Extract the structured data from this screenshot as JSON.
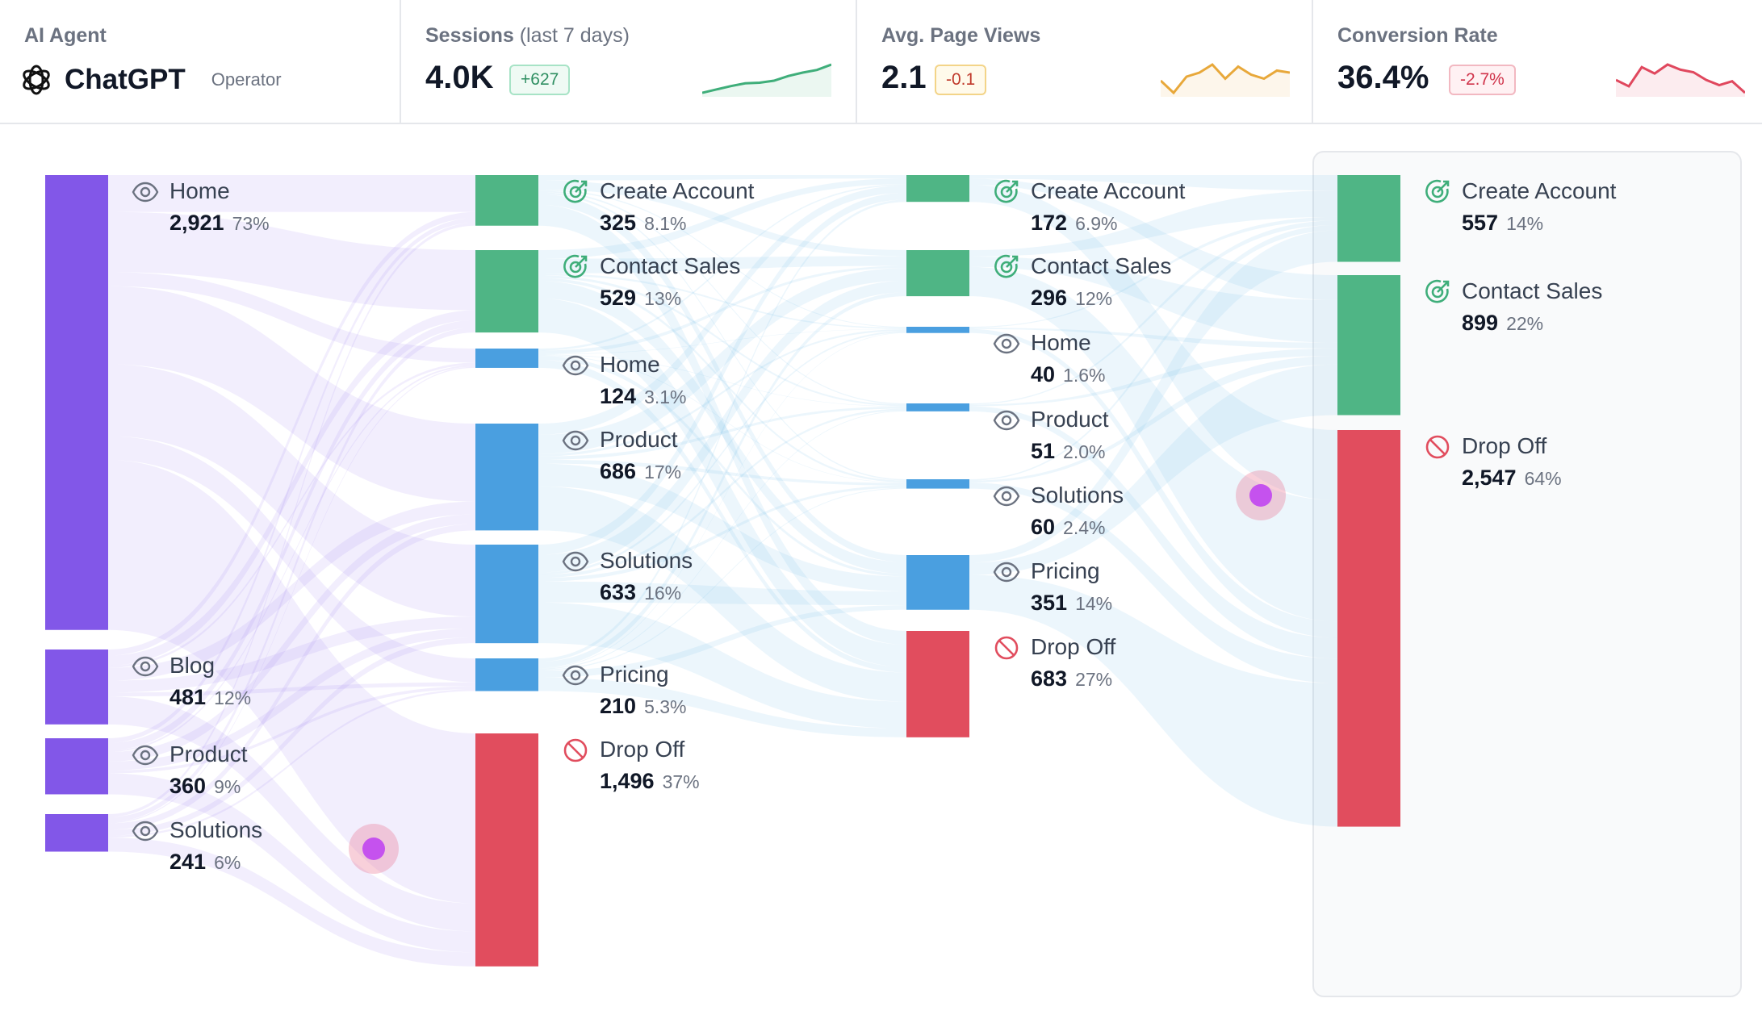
{
  "header": {
    "agent": {
      "label": "AI Agent",
      "name": "ChatGPT",
      "tag": "Operator",
      "icon": "openai-logo-icon"
    },
    "cards": [
      {
        "label": "Sessions",
        "sublabel": "(last 7 days)",
        "value": "4.0K",
        "delta": "+627",
        "color": "#3fae7a",
        "spark": [
          2,
          2.5,
          3,
          3.4,
          3.5,
          3.8,
          4.5,
          5,
          5.4,
          6.2
        ]
      },
      {
        "label": "Avg. Page Views",
        "sublabel": "",
        "value": "2.1",
        "delta": "-0.1",
        "color": "#e8a83a",
        "spark": [
          3,
          2.4,
          3.2,
          3.4,
          3.8,
          3.1,
          3.7,
          3.3,
          3.1,
          3.5,
          3.4
        ]
      },
      {
        "label": "Conversion Rate",
        "sublabel": "",
        "value": "36.4%",
        "delta": "-2.7%",
        "color": "#e0485e",
        "spark": [
          3,
          2.5,
          4,
          3.5,
          4.2,
          3.8,
          3.6,
          3,
          2.6,
          2.9,
          2
        ]
      }
    ]
  },
  "chart_data": {
    "type": "sankey",
    "colors": {
      "entry": "#8257e8",
      "goal": "#4fb585",
      "page": "#4a9fe0",
      "dropoff": "#e14d5e"
    },
    "columns": [
      [
        {
          "name": "Home",
          "value": "2,921",
          "pct": "73%",
          "kind": "entry",
          "icon": "eye-icon",
          "n": 2921
        },
        {
          "name": "Blog",
          "value": "481",
          "pct": "12%",
          "kind": "entry",
          "icon": "eye-icon",
          "n": 481
        },
        {
          "name": "Product",
          "value": "360",
          "pct": "9%",
          "kind": "entry",
          "icon": "eye-icon",
          "n": 360
        },
        {
          "name": "Solutions",
          "value": "241",
          "pct": "6%",
          "kind": "entry",
          "icon": "eye-icon",
          "n": 241
        }
      ],
      [
        {
          "name": "Create Account",
          "value": "325",
          "pct": "8.1%",
          "kind": "goal",
          "icon": "goal-icon",
          "n": 325
        },
        {
          "name": "Contact Sales",
          "value": "529",
          "pct": "13%",
          "kind": "goal",
          "icon": "goal-icon",
          "n": 529
        },
        {
          "name": "Home",
          "value": "124",
          "pct": "3.1%",
          "kind": "page",
          "icon": "eye-icon",
          "n": 124
        },
        {
          "name": "Product",
          "value": "686",
          "pct": "17%",
          "kind": "page",
          "icon": "eye-icon",
          "n": 686
        },
        {
          "name": "Solutions",
          "value": "633",
          "pct": "16%",
          "kind": "page",
          "icon": "eye-icon",
          "n": 633
        },
        {
          "name": "Pricing",
          "value": "210",
          "pct": "5.3%",
          "kind": "page",
          "icon": "eye-icon",
          "n": 210
        },
        {
          "name": "Drop Off",
          "value": "1,496",
          "pct": "37%",
          "kind": "dropoff",
          "icon": "dropoff-icon",
          "n": 1496
        }
      ],
      [
        {
          "name": "Create Account",
          "value": "172",
          "pct": "6.9%",
          "kind": "goal",
          "icon": "goal-icon",
          "n": 172
        },
        {
          "name": "Contact Sales",
          "value": "296",
          "pct": "12%",
          "kind": "goal",
          "icon": "goal-icon",
          "n": 296
        },
        {
          "name": "Home",
          "value": "40",
          "pct": "1.6%",
          "kind": "page",
          "icon": "eye-icon",
          "n": 40
        },
        {
          "name": "Product",
          "value": "51",
          "pct": "2.0%",
          "kind": "page",
          "icon": "eye-icon",
          "n": 51
        },
        {
          "name": "Solutions",
          "value": "60",
          "pct": "2.4%",
          "kind": "page",
          "icon": "eye-icon",
          "n": 60
        },
        {
          "name": "Pricing",
          "value": "351",
          "pct": "14%",
          "kind": "page",
          "icon": "eye-icon",
          "n": 351
        },
        {
          "name": "Drop Off",
          "value": "683",
          "pct": "27%",
          "kind": "dropoff",
          "icon": "dropoff-icon",
          "n": 683
        }
      ],
      [
        {
          "name": "Create Account",
          "value": "557",
          "pct": "14%",
          "kind": "goal",
          "icon": "goal-icon",
          "n": 557
        },
        {
          "name": "Contact Sales",
          "value": "899",
          "pct": "22%",
          "kind": "goal",
          "icon": "goal-icon",
          "n": 899
        },
        {
          "name": "Drop Off",
          "value": "2,547",
          "pct": "64%",
          "kind": "dropoff",
          "icon": "dropoff-icon",
          "n": 2547
        }
      ]
    ]
  }
}
